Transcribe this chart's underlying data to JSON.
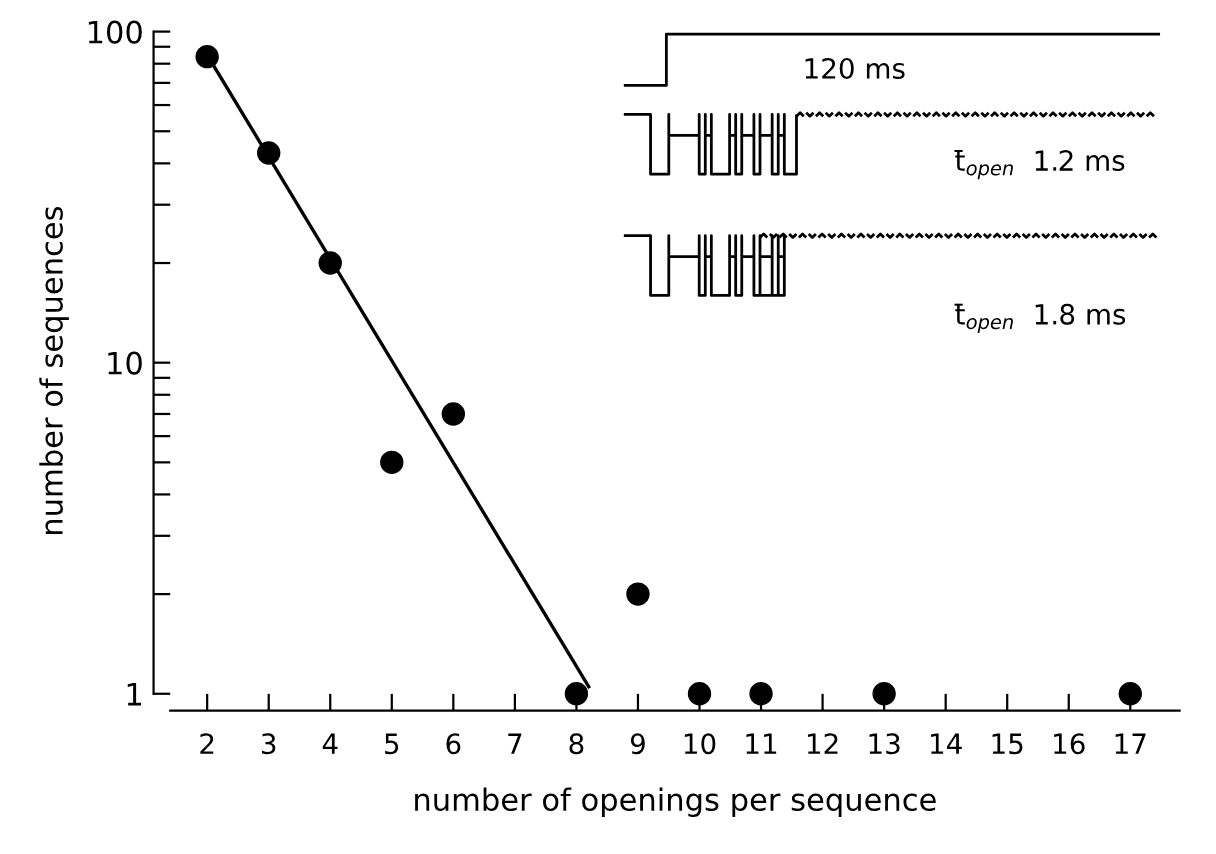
{
  "chart_data": {
    "type": "scatter",
    "xlabel": "number of openings per sequence",
    "ylabel": "number of sequences",
    "log": "y",
    "grid": false,
    "legend": false,
    "xlim": [
      1.4,
      17.8
    ],
    "xticks": [
      2,
      3,
      4,
      5,
      6,
      7,
      8,
      9,
      10,
      11,
      12,
      13,
      14,
      15,
      16,
      17
    ],
    "ylim": [
      0.89,
      100
    ],
    "yticks": [
      1,
      {
        "value": 2,
        "label": null
      },
      {
        "value": 3,
        "label": null
      },
      {
        "value": 4,
        "label": null
      },
      {
        "value": 5,
        "label": null
      },
      {
        "value": 6,
        "label": null
      },
      {
        "value": 7,
        "label": null
      },
      {
        "value": 8,
        "label": null
      },
      {
        "value": 9,
        "label": null
      },
      10,
      {
        "value": 20,
        "label": null
      },
      {
        "value": 30,
        "label": null
      },
      {
        "value": 40,
        "label": null
      },
      {
        "value": 50,
        "label": null
      },
      {
        "value": 60,
        "label": null
      },
      {
        "value": 70,
        "label": null
      },
      {
        "value": 80,
        "label": null
      },
      {
        "value": 90,
        "label": null
      },
      100
    ],
    "series": [
      {
        "color": "#000000",
        "marker": "circle",
        "x": [
          2,
          3,
          4,
          5,
          6,
          8,
          9,
          10,
          11,
          13,
          17
        ],
        "values": [
          84,
          43,
          20,
          5,
          7,
          1,
          2,
          1,
          1,
          1,
          1
        ]
      },
      {
        "type": "line",
        "color": "#000000",
        "line_style": "solid",
        "marker": "none",
        "x": [
          2,
          8.2
        ],
        "values": [
          85,
          1.05
        ]
      }
    ],
    "annotations": [
      "120 ms",
      "t̄$_{open}$  1.2 ms",
      "t̄$_{open}$  1.8 ms"
    ]
  }
}
